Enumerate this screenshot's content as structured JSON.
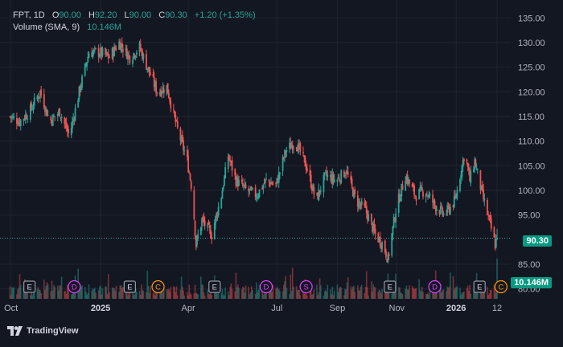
{
  "legend": {
    "symbol": "FPT",
    "interval": "1D",
    "open_label": "O",
    "open": "90.00",
    "high_label": "H",
    "high": "92.20",
    "low_label": "L",
    "low": "90.00",
    "close_label": "C",
    "close": "90.30",
    "change": "+1.20 (+1.35%)",
    "volume_label": "Volume (SMA, 9)",
    "volume": "10.146M"
  },
  "price_tag": {
    "value": "90.30",
    "color": "#089981"
  },
  "volume_tag": {
    "value": "10.146M",
    "color": "#089981"
  },
  "branding": {
    "label": "TradingView"
  },
  "colors": {
    "up": "#26a69a",
    "down": "#ef5350",
    "background": "#131722",
    "grid": "#1f2430"
  },
  "chart_data": {
    "type": "candlestick",
    "symbol": "FPT",
    "interval": "1D",
    "y_axis": {
      "range": [
        78,
        137
      ],
      "ticks": [
        "135.00",
        "130.00",
        "125.00",
        "120.00",
        "115.00",
        "110.00",
        "105.00",
        "100.00",
        "95.00",
        "85.00",
        "80.00"
      ]
    },
    "x_axis": {
      "ticks": [
        {
          "label": "Oct",
          "date": "2024-10-01",
          "bold": false
        },
        {
          "label": "2025",
          "date": "2025-01-01",
          "bold": true
        },
        {
          "label": "Apr",
          "date": "2025-04-01",
          "bold": false
        },
        {
          "label": "Jul",
          "date": "2025-07-01",
          "bold": false
        },
        {
          "label": "Sep",
          "date": "2025-09-01",
          "bold": false
        },
        {
          "label": "Nov",
          "date": "2025-11-01",
          "bold": false
        },
        {
          "label": "2026",
          "date": "2026-01-01",
          "bold": true
        },
        {
          "label": "12",
          "date": "2026-02-12",
          "bold": false
        }
      ],
      "range": [
        "2024-09-28",
        "2026-02-26"
      ]
    },
    "last_price": 90.3,
    "price_path": [
      [
        "2024-09-30",
        115
      ],
      [
        "2024-10-10",
        114
      ],
      [
        "2024-10-20",
        116
      ],
      [
        "2024-10-31",
        120
      ],
      [
        "2024-11-10",
        114
      ],
      [
        "2024-11-20",
        116
      ],
      [
        "2024-11-30",
        111
      ],
      [
        "2024-12-10",
        120
      ],
      [
        "2024-12-20",
        128
      ],
      [
        "2024-12-31",
        128
      ],
      [
        "2025-01-10",
        127
      ],
      [
        "2025-01-20",
        130
      ],
      [
        "2025-01-31",
        127
      ],
      [
        "2025-02-10",
        129
      ],
      [
        "2025-02-20",
        124
      ],
      [
        "2025-02-28",
        120
      ],
      [
        "2025-03-10",
        121
      ],
      [
        "2025-03-20",
        113
      ],
      [
        "2025-03-31",
        106
      ],
      [
        "2025-04-05",
        100
      ],
      [
        "2025-04-09",
        89
      ],
      [
        "2025-04-15",
        94
      ],
      [
        "2025-04-25",
        91
      ],
      [
        "2025-05-05",
        99
      ],
      [
        "2025-05-12",
        107
      ],
      [
        "2025-05-20",
        102
      ],
      [
        "2025-05-31",
        100
      ],
      [
        "2025-06-10",
        99
      ],
      [
        "2025-06-20",
        102
      ],
      [
        "2025-06-30",
        101
      ],
      [
        "2025-07-10",
        108
      ],
      [
        "2025-07-20",
        110
      ],
      [
        "2025-07-31",
        105
      ],
      [
        "2025-08-10",
        98
      ],
      [
        "2025-08-20",
        103
      ],
      [
        "2025-08-31",
        102
      ],
      [
        "2025-09-10",
        104
      ],
      [
        "2025-09-20",
        98
      ],
      [
        "2025-09-30",
        96
      ],
      [
        "2025-10-10",
        91
      ],
      [
        "2025-10-18",
        89
      ],
      [
        "2025-10-23",
        86
      ],
      [
        "2025-10-31",
        96
      ],
      [
        "2025-11-10",
        103
      ],
      [
        "2025-11-20",
        99
      ],
      [
        "2025-11-30",
        100
      ],
      [
        "2025-12-10",
        97
      ],
      [
        "2025-12-20",
        95
      ],
      [
        "2025-12-31",
        98
      ],
      [
        "2026-01-10",
        108
      ],
      [
        "2026-01-15",
        102
      ],
      [
        "2026-01-20",
        106
      ],
      [
        "2026-01-28",
        99
      ],
      [
        "2026-02-05",
        93
      ],
      [
        "2026-02-10",
        89
      ],
      [
        "2026-02-12",
        90.3
      ]
    ],
    "events": [
      {
        "type": "E",
        "date": "2024-10-20"
      },
      {
        "type": "D",
        "date": "2024-12-05"
      },
      {
        "type": "E",
        "date": "2025-01-31"
      },
      {
        "type": "C",
        "date": "2025-03-01"
      },
      {
        "type": "E",
        "date": "2025-04-28"
      },
      {
        "type": "D",
        "date": "2025-06-20"
      },
      {
        "type": "S",
        "date": "2025-07-31"
      },
      {
        "type": "E",
        "date": "2025-10-25"
      },
      {
        "type": "D",
        "date": "2025-12-10"
      },
      {
        "type": "E",
        "date": "2026-01-25"
      },
      {
        "type": "C",
        "date": "2026-02-16"
      }
    ],
    "volume_sma": "10.146M"
  }
}
